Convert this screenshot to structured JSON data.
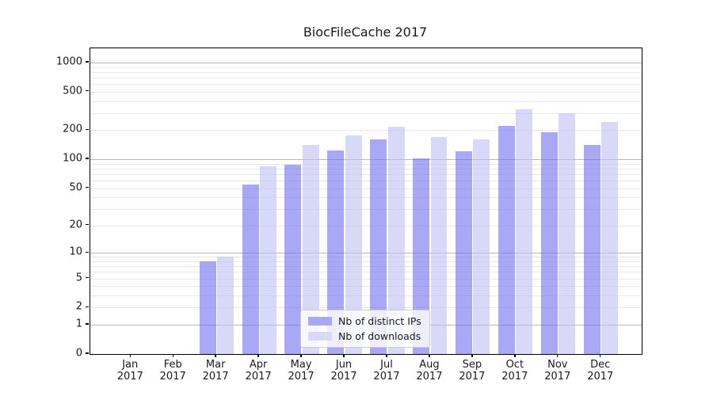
{
  "chart_data": {
    "type": "bar",
    "title": "BiocFileCache 2017",
    "categories": [
      "Jan",
      "Feb",
      "Mar",
      "Apr",
      "May",
      "Jun",
      "Jul",
      "Aug",
      "Sep",
      "Oct",
      "Nov",
      "Dec"
    ],
    "category_year": "2017",
    "series": [
      {
        "name": "Nb of distinct IPs",
        "color": "rgba(110,110,240,0.6)",
        "swatch_color": "#a8a8f6",
        "values": [
          0,
          0,
          8,
          55,
          88,
          124,
          161,
          102,
          121,
          221,
          190,
          141
        ]
      },
      {
        "name": "Nb of downloads",
        "color": "rgba(190,190,243,0.6)",
        "swatch_color": "#d8d8f9",
        "values": [
          0,
          0,
          9,
          84,
          140,
          178,
          216,
          169,
          161,
          331,
          300,
          242
        ]
      }
    ],
    "xlabel": "",
    "ylabel": "",
    "y_scale": "log1p",
    "ylim": [
      0,
      1400
    ],
    "y_ticks": [
      0,
      1,
      2,
      5,
      10,
      20,
      50,
      100,
      200,
      500,
      1000
    ],
    "y_major_gridlines": [
      1,
      10,
      100,
      1000
    ],
    "y_minor_gridlines": [
      2,
      3,
      4,
      5,
      6,
      7,
      8,
      9,
      20,
      30,
      40,
      50,
      60,
      70,
      80,
      90,
      200,
      300,
      400,
      500,
      600,
      700,
      800,
      900
    ],
    "grid": true,
    "legend_position": "lower-center",
    "colors": {
      "major_grid": "#b9b9b9",
      "minor_grid": "#e8e8e8",
      "spine": "#000000",
      "text": "#1a1a1a",
      "background": "#ffffff"
    }
  }
}
